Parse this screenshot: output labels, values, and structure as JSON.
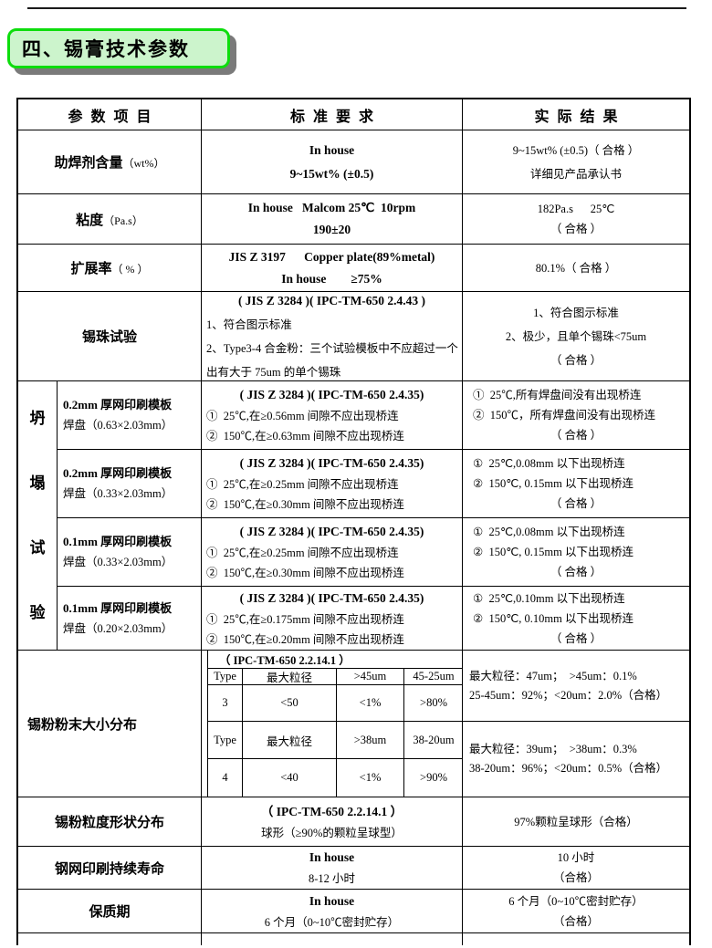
{
  "title": "四、锡膏技术参数",
  "table": {
    "header": [
      "参数项目",
      "标准要求",
      "实际结果"
    ],
    "flux": {
      "label": "助焊剂含量",
      "unit": "（wt%）",
      "std1": "In house",
      "std2": "9~15wt% (±0.5)",
      "res1": "9~15wt% (±0.5)（ 合格 ）",
      "res2": "详细见产品承认书"
    },
    "viscosity": {
      "label": "粘度",
      "unit": "（Pa.s）",
      "std1": "In house   Malcom 25℃  10rpm",
      "std2": "190±20",
      "res1": "182Pa.s      25℃",
      "res2": "（ 合格 ）"
    },
    "spread": {
      "label": "扩展率",
      "unit": "（ % ）",
      "std1": "JIS Z 3197      Copper plate(89%metal)",
      "std2": "In house        ≥75%",
      "res1": "80.1%（ 合格 ）"
    },
    "ball": {
      "label": "锡珠试验",
      "std_title": "( JIS Z 3284 )( IPC-TM-650 2.4.43 )",
      "std1": "1、符合图示标准",
      "std2": "2、Type3-4 合金粉：三个试验模板中不应超过一个出有大于 75um 的单个锡珠",
      "res1": "1、符合图示标准",
      "res2": "2、极少，且单个锡珠<75um",
      "res3": "（ 合格 ）"
    },
    "collapse": {
      "vlabel": "坍塌试验",
      "rows": [
        {
          "tpl": "0.2mm 厚网印刷模板",
          "pad": "焊盘（0.63×2.03mm）",
          "std_title": "( JIS Z 3284 )( IPC-TM-650 2.4.35)",
          "std1": "①  25℃,在≥0.56mm 间隙不应出现桥连",
          "std2": "②  150℃,在≥0.63mm 间隙不应出现桥连",
          "res1": "①  25℃,所有焊盘间没有出现桥连",
          "res2": "②  150℃，所有焊盘间没有出现桥连",
          "res3": "（ 合格 ）"
        },
        {
          "tpl": "0.2mm 厚网印刷模板",
          "pad": "焊盘（0.33×2.03mm）",
          "std_title": "( JIS Z 3284 )( IPC-TM-650 2.4.35)",
          "std1": "①  25℃,在≥0.25mm 间隙不应出现桥连",
          "std2": "②  150℃,在≥0.30mm 间隙不应出现桥连",
          "res1": "①  25℃,0.08mm 以下出现桥连",
          "res2": "②  150℃, 0.15mm 以下出现桥连",
          "res3": "（ 合格 ）"
        },
        {
          "tpl": "0.1mm 厚网印刷模板",
          "pad": "焊盘（0.33×2.03mm）",
          "std_title": "( JIS Z 3284 )( IPC-TM-650 2.4.35)",
          "std1": "①  25℃,在≥0.25mm 间隙不应出现桥连",
          "std2": "②  150℃,在≥0.30mm 间隙不应出现桥连",
          "res1": "①  25℃,0.08mm 以下出现桥连",
          "res2": "②  150℃, 0.15mm 以下出现桥连",
          "res3": "（ 合格 ）"
        },
        {
          "tpl": "0.1mm 厚网印刷模板",
          "pad": "焊盘（0.20×2.03mm）",
          "std_title": "( JIS Z 3284 )( IPC-TM-650 2.4.35)",
          "std1": "①  25℃,在≥0.175mm 间隙不应出现桥连",
          "std2": "②  150℃,在≥0.20mm 间隙不应出现桥连",
          "res1": "①  25℃,0.10mm 以下出现桥连",
          "res2": "②  150℃, 0.10mm 以下出现桥连",
          "res3": "（ 合格 ）"
        }
      ]
    },
    "powder_size": {
      "label": "锡粉粉末大小分布",
      "ipc": "（ IPC-TM-650 2.2.14.1 ）",
      "type3": {
        "h": [
          "Type",
          "最大粒径",
          ">45um",
          "45-25um"
        ],
        "v": [
          "3",
          "<50",
          "<1%",
          ">80%"
        ]
      },
      "type4": {
        "h": [
          "Type",
          "最大粒径",
          ">38um",
          "38-20um"
        ],
        "v": [
          "4",
          "<40",
          "<1%",
          ">90%"
        ]
      },
      "res3a": "最大粒径：47um；  >45um：0.1%",
      "res3b": "25-45um：92%；<20um：2.0%（合格）",
      "res4a": "最大粒径：39um；  >38um：0.3%",
      "res4b": "38-20um：96%；<20um：0.5%（合格）"
    },
    "powder_shape": {
      "label": "锡粉粒度形状分布",
      "std1": "（ IPC-TM-650 2.2.14.1 ）",
      "std2": "球形（≥90%的颗粒呈球型）",
      "res1": "97%颗粒呈球形（合格）"
    },
    "stencil_life": {
      "label": "钢网印刷持续寿命",
      "std1": "In house",
      "std2": "8-12 小时",
      "res1": "10 小时",
      "res2": "（合格）"
    },
    "shelf_life": {
      "label": "保质期",
      "std1": "In house",
      "std2": "6 个月（0~10℃密封贮存）",
      "res1": "6 个月（0~10℃密封贮存）",
      "res2": "（合格）"
    }
  }
}
